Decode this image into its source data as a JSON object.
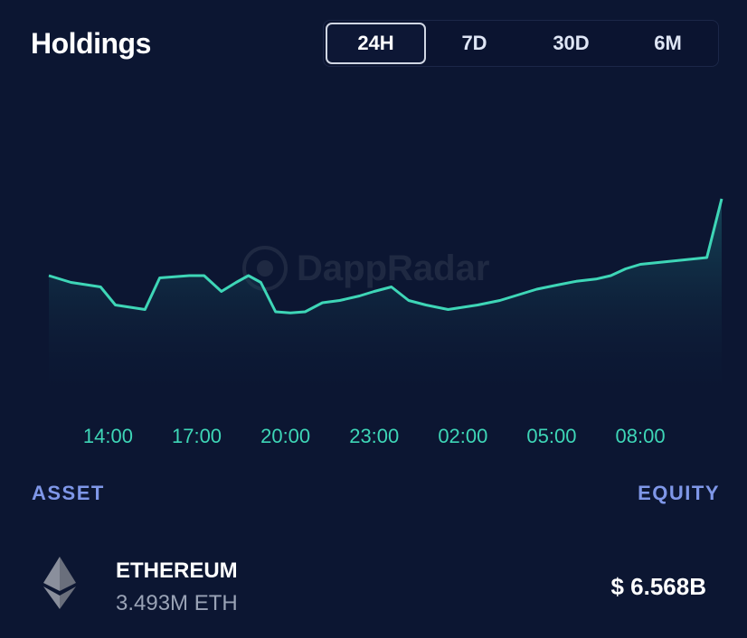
{
  "header": {
    "title": "Holdings"
  },
  "range_tabs": [
    {
      "label": "24H",
      "active": true
    },
    {
      "label": "7D",
      "active": false
    },
    {
      "label": "30D",
      "active": false
    },
    {
      "label": "6M",
      "active": false
    }
  ],
  "watermark": {
    "text": "DappRadar"
  },
  "chart_data": {
    "type": "area",
    "title": "",
    "xlabel": "",
    "ylabel": "",
    "x_tick_labels": [
      "14:00",
      "17:00",
      "20:00",
      "23:00",
      "02:00",
      "05:00",
      "08:00"
    ],
    "grid": false,
    "line_color": "#3ed6b7",
    "tick_color": "#3ed6b7",
    "points": [
      [
        "12:00",
        0.58
      ],
      [
        "12:45",
        0.55
      ],
      [
        "13:15",
        0.54
      ],
      [
        "13:45",
        0.53
      ],
      [
        "14:15",
        0.45
      ],
      [
        "14:45",
        0.44
      ],
      [
        "15:15",
        0.43
      ],
      [
        "15:45",
        0.57
      ],
      [
        "16:15",
        0.575
      ],
      [
        "16:45",
        0.58
      ],
      [
        "17:15",
        0.58
      ],
      [
        "17:50",
        0.51
      ],
      [
        "18:20",
        0.55
      ],
      [
        "18:45",
        0.58
      ],
      [
        "19:10",
        0.55
      ],
      [
        "19:40",
        0.42
      ],
      [
        "20:10",
        0.415
      ],
      [
        "20:40",
        0.42
      ],
      [
        "21:15",
        0.46
      ],
      [
        "21:50",
        0.47
      ],
      [
        "22:30",
        0.49
      ],
      [
        "23:00",
        0.51
      ],
      [
        "23:35",
        0.53
      ],
      [
        "00:10",
        0.47
      ],
      [
        "00:45",
        0.45
      ],
      [
        "01:30",
        0.43
      ],
      [
        "02:00",
        0.44
      ],
      [
        "02:30",
        0.45
      ],
      [
        "03:15",
        0.47
      ],
      [
        "03:45",
        0.49
      ],
      [
        "04:30",
        0.52
      ],
      [
        "05:15",
        0.54
      ],
      [
        "05:50",
        0.555
      ],
      [
        "06:30",
        0.565
      ],
      [
        "07:00",
        0.58
      ],
      [
        "07:30",
        0.61
      ],
      [
        "08:00",
        0.63
      ],
      [
        "08:45",
        0.64
      ],
      [
        "09:30",
        0.65
      ],
      [
        "10:15",
        0.66
      ],
      [
        "10:45",
        0.92
      ]
    ],
    "note_values": "relative equity level read off the line; the chart prints no y-axis"
  },
  "table": {
    "columns": {
      "asset": "ASSET",
      "equity": "EQUITY"
    },
    "rows": [
      {
        "icon": "ethereum-icon",
        "name": "ETHEREUM",
        "amount": "3.493M ETH",
        "equity": "$ 6.568B"
      }
    ]
  }
}
